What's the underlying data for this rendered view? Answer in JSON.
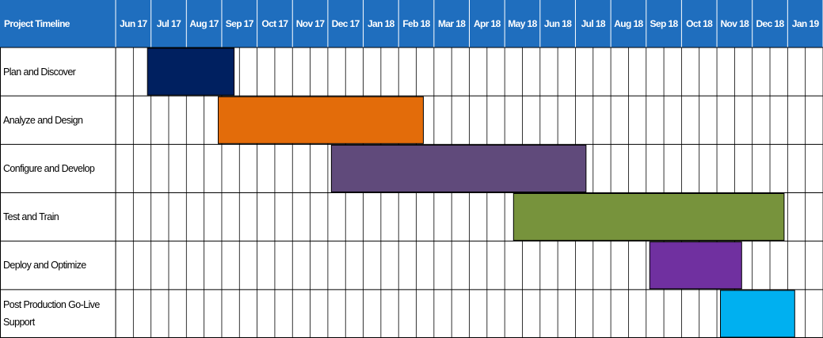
{
  "chart_data": {
    "type": "gantt",
    "title": "Project Timeline",
    "categories": [
      "Jun 17",
      "Jul 17",
      "Aug 17",
      "Sep 17",
      "Oct 17",
      "Nov 17",
      "Dec 17",
      "Jan 18",
      "Feb 18",
      "Mar 18",
      "Apr 18",
      "May 18",
      "Jun 18",
      "Jul 18",
      "Aug 18",
      "Sep 18",
      "Oct 18",
      "Nov 18",
      "Dec 18",
      "Jan 19"
    ],
    "xlim": [
      0,
      20
    ],
    "tasks": [
      {
        "name": "Plan and Discover",
        "start": 0.9,
        "end": 3.35,
        "color": "#002060"
      },
      {
        "name": "Analyze and Design",
        "start": 2.9,
        "end": 8.7,
        "color": "#e36c0a"
      },
      {
        "name": "Configure and Develop",
        "start": 6.1,
        "end": 13.3,
        "color": "#604a7b"
      },
      {
        "name": "Test and Train",
        "start": 11.25,
        "end": 18.9,
        "color": "#77933c"
      },
      {
        "name": "Deploy and Optimize",
        "start": 15.1,
        "end": 17.7,
        "color": "#7030a0"
      },
      {
        "name": "Post Production Go-Live Support",
        "start": 17.1,
        "end": 19.2,
        "color": "#00b0f0"
      }
    ]
  }
}
